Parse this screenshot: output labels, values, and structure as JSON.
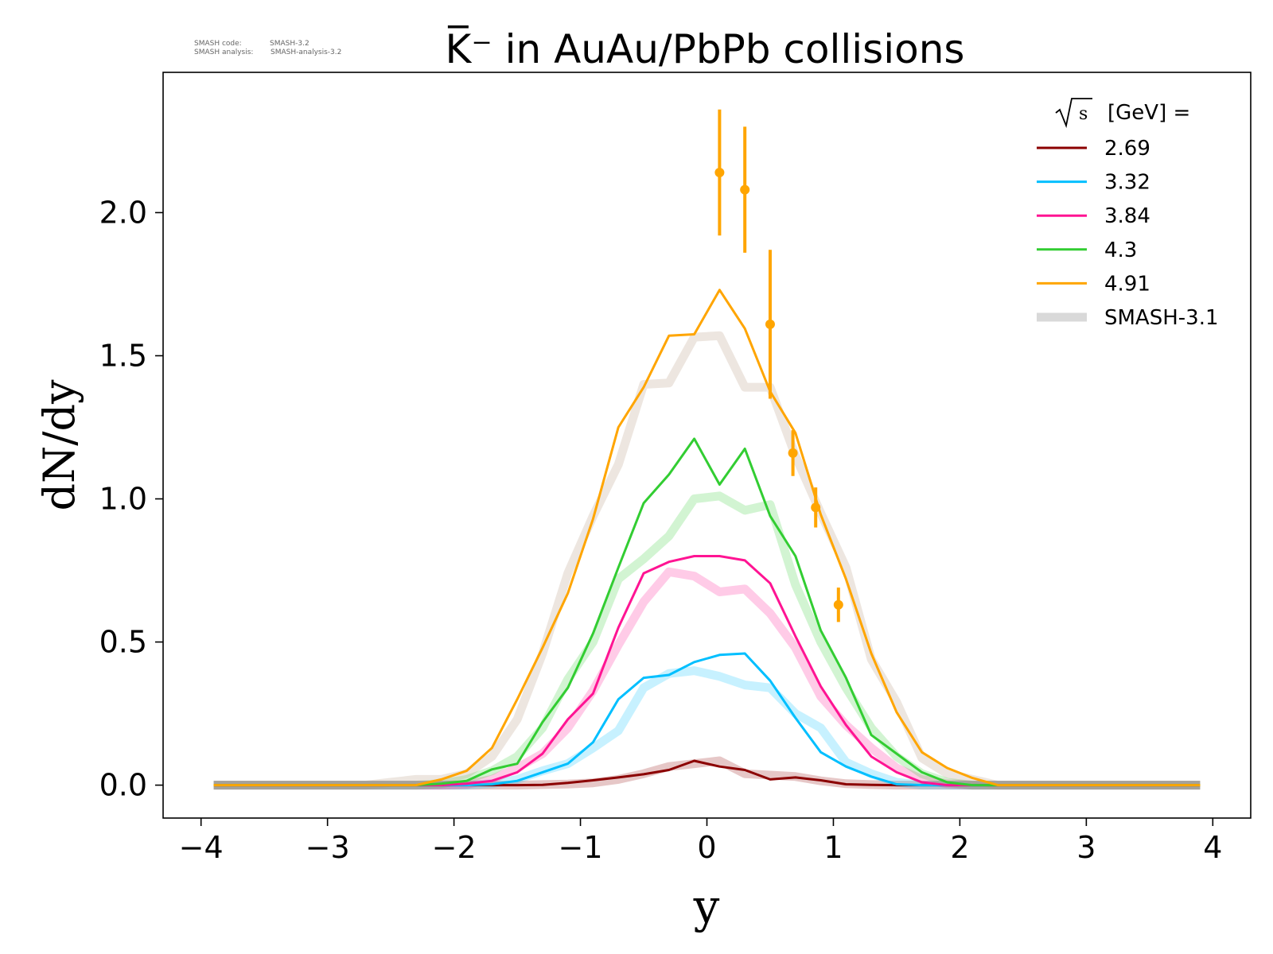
{
  "watermark": {
    "code_label": "SMASH code:",
    "code_value": "SMASH-3.2",
    "analysis_label": "SMASH analysis:",
    "analysis_value": "SMASH-analysis-3.2"
  },
  "chart_data": {
    "type": "line",
    "title": "K̅⁻ in AuAu/PbPb collisions",
    "xlabel": "y",
    "ylabel": "dN/dy",
    "xlim": [
      -4.3,
      4.3
    ],
    "ylim": [
      -0.115,
      2.49
    ],
    "xticks": [
      -4,
      -3,
      -2,
      -1,
      0,
      1,
      2,
      3,
      4
    ],
    "xtick_labels": [
      "−4",
      "−3",
      "−2",
      "−1",
      "0",
      "1",
      "2",
      "3",
      "4"
    ],
    "yticks": [
      0.0,
      0.5,
      1.0,
      1.5,
      2.0
    ],
    "ytick_labels": [
      "0.0",
      "0.5",
      "1.0",
      "1.5",
      "2.0"
    ],
    "grid": false,
    "legend": {
      "placement": "top-right",
      "title_sqrt": "s",
      "title_text": "[GeV] =",
      "entries": [
        "2.69",
        "3.32",
        "3.84",
        "4.3",
        "4.91",
        "SMASH-3.1"
      ]
    },
    "x": [
      -3.9,
      -3.7,
      -3.5,
      -3.3,
      -3.1,
      -2.9,
      -2.7,
      -2.5,
      -2.3,
      -2.1,
      -1.9,
      -1.7,
      -1.5,
      -1.3,
      -1.1,
      -0.9,
      -0.7,
      -0.5,
      -0.3,
      -0.1,
      0.1,
      0.3,
      0.5,
      0.7,
      0.9,
      1.1,
      1.3,
      1.5,
      1.7,
      1.9,
      2.1,
      2.3,
      2.5,
      2.7,
      2.9,
      3.1,
      3.3,
      3.5,
      3.7,
      3.9
    ],
    "series": [
      {
        "name": "2.69",
        "color": "#8b0000",
        "values": [
          0,
          0,
          0,
          0,
          0,
          0,
          0,
          0,
          0,
          0,
          0,
          0,
          0,
          0.001,
          0.008,
          0.017,
          0.027,
          0.038,
          0.053,
          0.085,
          0.065,
          0.053,
          0.02,
          0.027,
          0.017,
          0.003,
          0.001,
          0,
          0,
          0,
          0,
          0,
          0,
          0,
          0,
          0,
          0,
          0,
          0,
          0
        ]
      },
      {
        "name": "3.32",
        "color": "#00bfff",
        "values": [
          0,
          0,
          0,
          0,
          0,
          0,
          0,
          0,
          0,
          0,
          0,
          0.003,
          0.015,
          0.045,
          0.075,
          0.15,
          0.3,
          0.375,
          0.385,
          0.43,
          0.455,
          0.46,
          0.365,
          0.235,
          0.115,
          0.065,
          0.03,
          0.003,
          0,
          0,
          0,
          0,
          0,
          0,
          0,
          0,
          0,
          0,
          0,
          0
        ]
      },
      {
        "name": "3.84",
        "color": "#ff1493",
        "values": [
          0,
          0,
          0,
          0,
          0,
          0,
          0,
          0,
          0,
          0,
          0.005,
          0.015,
          0.045,
          0.11,
          0.23,
          0.32,
          0.55,
          0.74,
          0.78,
          0.8,
          0.8,
          0.785,
          0.705,
          0.52,
          0.345,
          0.21,
          0.1,
          0.045,
          0.01,
          0,
          0,
          0,
          0,
          0,
          0,
          0,
          0,
          0,
          0,
          0
        ]
      },
      {
        "name": "4.3",
        "color": "#32cd32",
        "values": [
          0,
          0,
          0,
          0,
          0,
          0,
          0,
          0,
          0,
          0.005,
          0.015,
          0.055,
          0.075,
          0.22,
          0.34,
          0.53,
          0.76,
          0.985,
          1.085,
          1.21,
          1.05,
          1.175,
          0.94,
          0.8,
          0.54,
          0.375,
          0.175,
          0.11,
          0.045,
          0.01,
          0,
          0,
          0,
          0,
          0,
          0,
          0,
          0,
          0,
          0
        ]
      },
      {
        "name": "4.91",
        "color": "#ffa500",
        "values": [
          0,
          0,
          0,
          0,
          0,
          0,
          0,
          0,
          0,
          0.02,
          0.05,
          0.13,
          0.3,
          0.48,
          0.67,
          0.93,
          1.25,
          1.39,
          1.57,
          1.575,
          1.73,
          1.595,
          1.375,
          1.23,
          0.945,
          0.72,
          0.46,
          0.255,
          0.115,
          0.06,
          0.025,
          0,
          0,
          0,
          0,
          0,
          0,
          0,
          0,
          0
        ]
      }
    ],
    "reference_series": [
      {
        "name": "SMASH-3.1",
        "for": "2.69",
        "color": "#8b0000",
        "values": [
          0,
          0,
          0,
          0,
          0,
          0,
          0,
          0,
          0,
          0,
          0,
          0,
          0,
          0.002,
          0.004,
          0.008,
          0.02,
          0.04,
          0.065,
          0.075,
          0.085,
          0.04,
          0.035,
          0.03,
          0.015,
          0.005,
          0.002,
          0,
          0,
          0,
          0,
          0,
          0,
          0,
          0,
          0,
          0,
          0,
          0,
          0
        ]
      },
      {
        "name": "SMASH-3.1",
        "for": "3.32",
        "color": "#00bfff",
        "values": [
          0,
          0,
          0,
          0,
          0,
          0,
          0,
          0,
          0,
          0,
          0,
          0.005,
          0.02,
          0.05,
          0.075,
          0.13,
          0.19,
          0.34,
          0.39,
          0.4,
          0.38,
          0.35,
          0.34,
          0.25,
          0.2,
          0.08,
          0.04,
          0.01,
          0,
          0,
          0,
          0,
          0,
          0,
          0,
          0,
          0,
          0,
          0,
          0
        ]
      },
      {
        "name": "SMASH-3.1",
        "for": "3.84",
        "color": "#ff1493",
        "values": [
          0,
          0,
          0,
          0,
          0,
          0,
          0,
          0,
          0,
          0,
          0.003,
          0.02,
          0.06,
          0.11,
          0.2,
          0.33,
          0.49,
          0.64,
          0.745,
          0.73,
          0.675,
          0.685,
          0.6,
          0.48,
          0.31,
          0.21,
          0.13,
          0.06,
          0.02,
          0.005,
          0,
          0,
          0,
          0,
          0,
          0,
          0,
          0,
          0,
          0
        ]
      },
      {
        "name": "SMASH-3.1",
        "for": "4.3",
        "color": "#32cd32",
        "values": [
          0,
          0,
          0,
          0,
          0,
          0,
          0,
          0,
          0,
          0.005,
          0.02,
          0.05,
          0.1,
          0.2,
          0.37,
          0.5,
          0.72,
          0.79,
          0.87,
          1.0,
          1.01,
          0.96,
          0.98,
          0.7,
          0.5,
          0.34,
          0.2,
          0.1,
          0.04,
          0.01,
          0,
          0,
          0,
          0,
          0,
          0,
          0,
          0,
          0,
          0
        ]
      },
      {
        "name": "SMASH-3.1",
        "for": "4.91",
        "color": "#ad8b73",
        "values": [
          0,
          0,
          0,
          0,
          0,
          0,
          0,
          0.01,
          0.02,
          0.02,
          0.04,
          0.1,
          0.23,
          0.46,
          0.74,
          0.94,
          1.12,
          1.4,
          1.405,
          1.565,
          1.57,
          1.39,
          1.39,
          1.15,
          0.95,
          0.76,
          0.44,
          0.29,
          0.095,
          0.04,
          0.02,
          0,
          0,
          0,
          0,
          0,
          0,
          0,
          0,
          0
        ]
      }
    ],
    "data_points": {
      "color": "#ffa500",
      "x": [
        0.1,
        0.3,
        0.5,
        0.68,
        0.86,
        1.04
      ],
      "y": [
        2.14,
        2.08,
        1.61,
        1.16,
        0.97,
        0.63
      ],
      "yerr": [
        0.22,
        0.22,
        0.26,
        0.08,
        0.07,
        0.06
      ]
    }
  }
}
